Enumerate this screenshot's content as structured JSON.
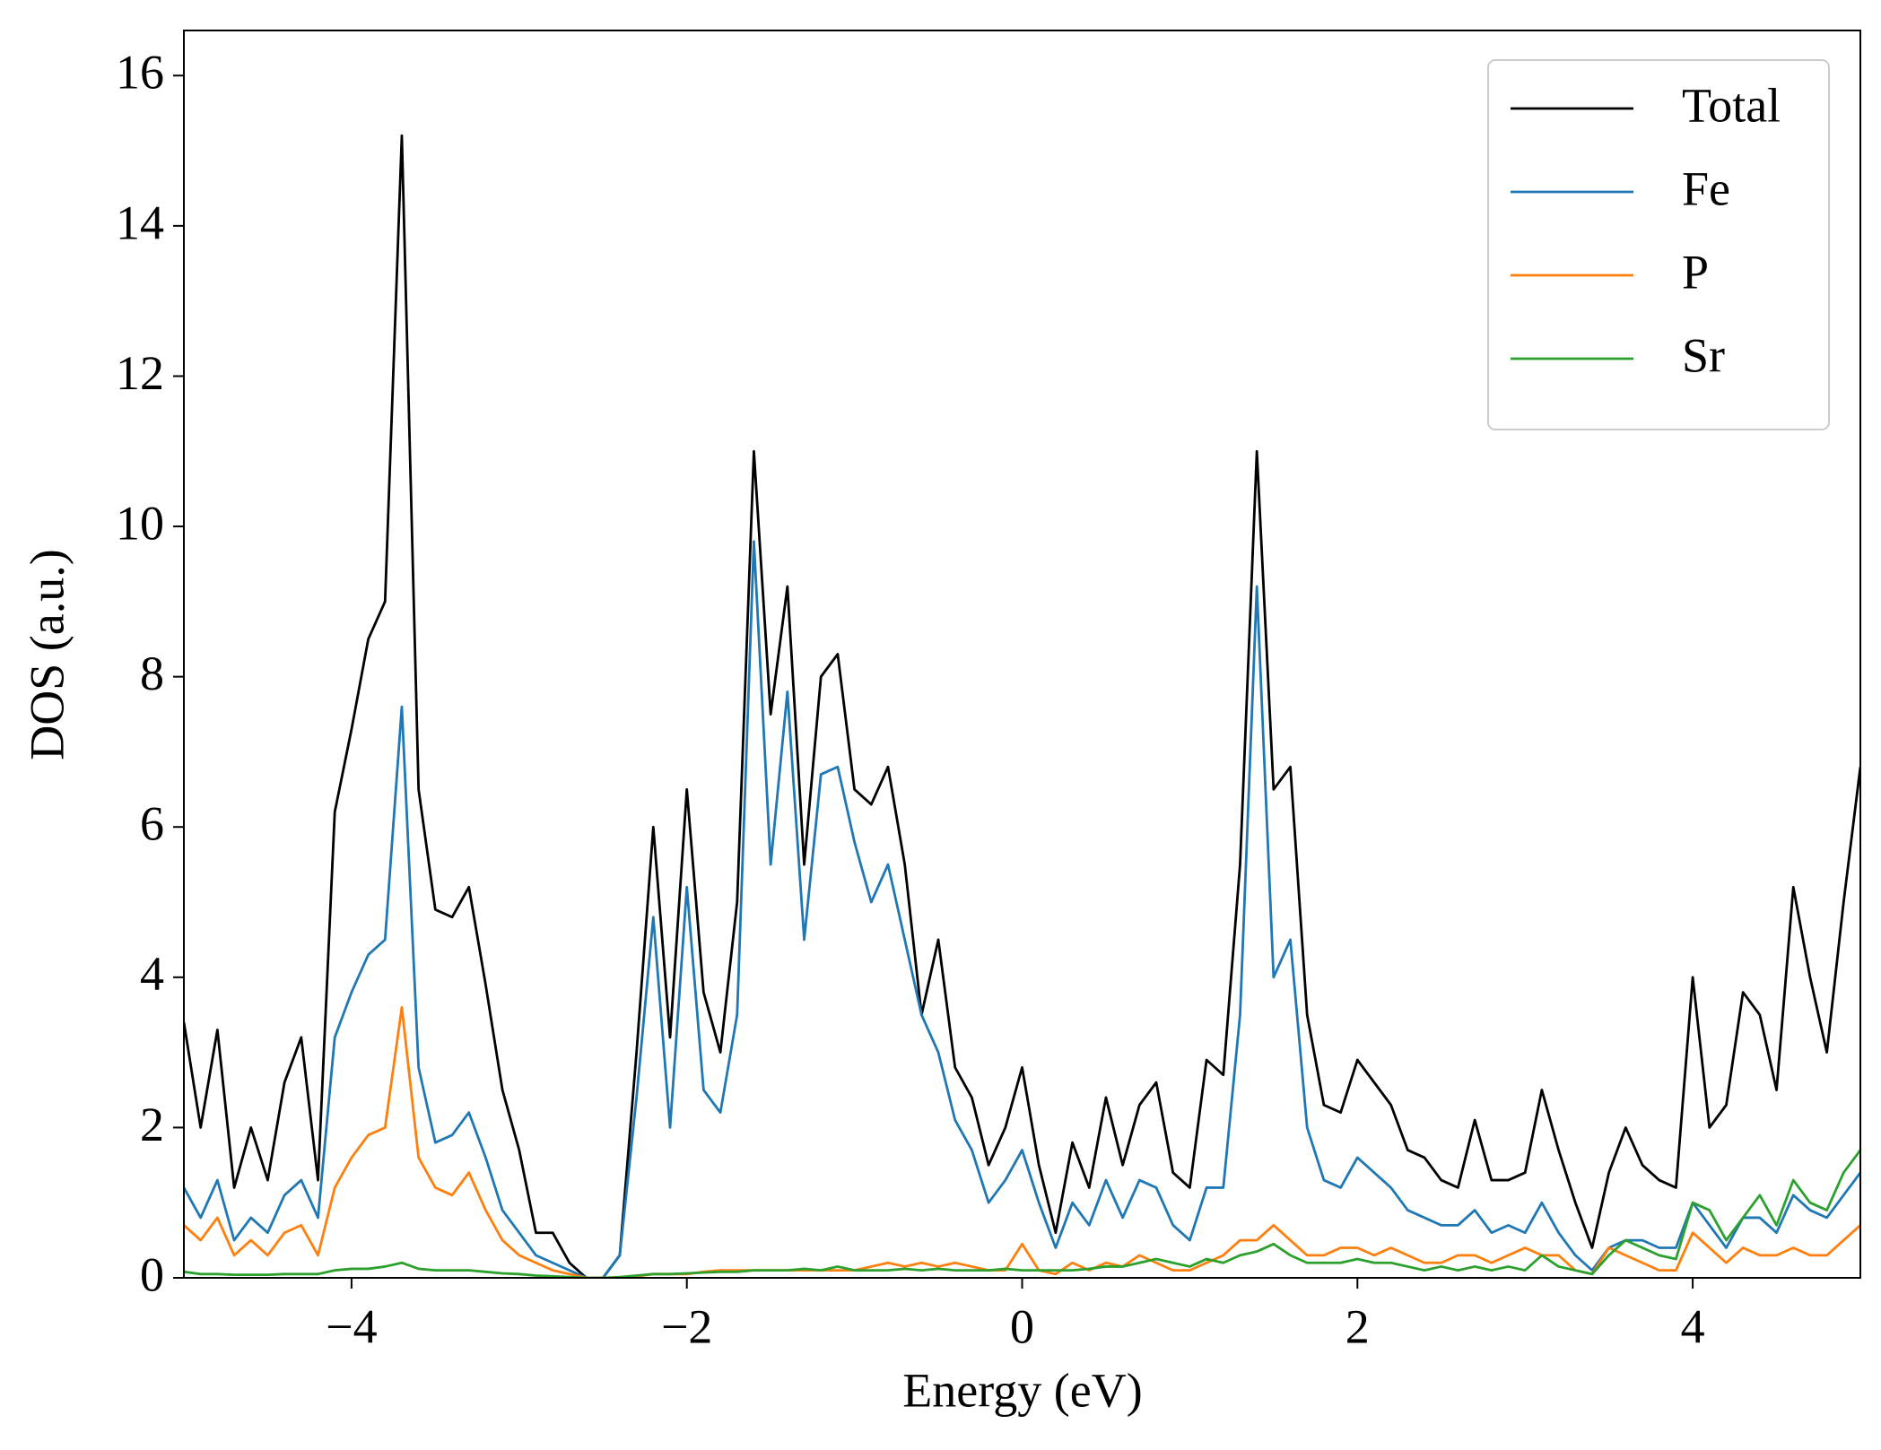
{
  "chart_data": {
    "type": "line",
    "xlabel": "Energy (eV)",
    "ylabel": "DOS (a.u.)",
    "x": [
      -5,
      -4.9,
      -4.8,
      -4.7,
      -4.6,
      -4.5,
      -4.4,
      -4.3,
      -4.2,
      -4.1,
      -4,
      -3.9,
      -3.8,
      -3.7,
      -3.6,
      -3.5,
      -3.4,
      -3.3,
      -3.2,
      -3.1,
      -3,
      -2.9,
      -2.8,
      -2.7,
      -2.6,
      -2.5,
      -2.4,
      -2.3,
      -2.2,
      -2.1,
      -2,
      -1.9,
      -1.8,
      -1.7,
      -1.6,
      -1.5,
      -1.4,
      -1.3,
      -1.2,
      -1.1,
      -1,
      -0.9,
      -0.8,
      -0.7,
      -0.6,
      -0.5,
      -0.4,
      -0.3,
      -0.2,
      -0.1,
      0,
      0.1,
      0.2,
      0.3,
      0.4,
      0.5,
      0.6,
      0.7,
      0.8,
      0.9,
      1,
      1.1,
      1.2,
      1.3,
      1.4,
      1.5,
      1.6,
      1.7,
      1.8,
      1.9,
      2,
      2.1,
      2.2,
      2.3,
      2.4,
      2.5,
      2.6,
      2.7,
      2.8,
      2.9,
      3,
      3.1,
      3.2,
      3.3,
      3.4,
      3.5,
      3.6,
      3.7,
      3.8,
      3.9,
      4,
      4.1,
      4.2,
      4.3,
      4.4,
      4.5,
      4.6,
      4.7,
      4.8,
      4.9,
      5
    ],
    "series": [
      {
        "name": "Total",
        "color": "#000000",
        "values": [
          3.4,
          2.0,
          3.3,
          1.2,
          2.0,
          1.3,
          2.6,
          3.2,
          1.3,
          6.2,
          7.3,
          8.5,
          9.0,
          15.2,
          6.5,
          4.9,
          4.8,
          5.2,
          3.9,
          2.5,
          1.7,
          0.6,
          0.6,
          0.2,
          0.0,
          0.0,
          0.3,
          3.0,
          6.0,
          3.2,
          6.5,
          3.8,
          3.0,
          5.0,
          11.0,
          7.5,
          9.2,
          5.5,
          8.0,
          8.3,
          6.5,
          6.3,
          6.8,
          5.5,
          3.5,
          4.5,
          2.8,
          2.4,
          1.5,
          2.0,
          2.8,
          1.5,
          0.6,
          1.8,
          1.2,
          2.4,
          1.5,
          2.3,
          2.6,
          1.4,
          1.2,
          2.9,
          2.7,
          5.5,
          11.0,
          6.5,
          6.8,
          3.5,
          2.3,
          2.2,
          2.9,
          2.6,
          2.3,
          1.7,
          1.6,
          1.3,
          1.2,
          2.1,
          1.3,
          1.3,
          1.4,
          2.5,
          1.7,
          1.0,
          0.4,
          1.4,
          2.0,
          1.5,
          1.3,
          1.2,
          4.0,
          2.0,
          2.3,
          3.8,
          3.5,
          2.5,
          5.2,
          4.0,
          3.0,
          5.0,
          6.8
        ]
      },
      {
        "name": "Fe",
        "color": "#1f77b4",
        "values": [
          1.2,
          0.8,
          1.3,
          0.5,
          0.8,
          0.6,
          1.1,
          1.3,
          0.8,
          3.2,
          3.8,
          4.3,
          4.5,
          7.6,
          2.8,
          1.8,
          1.9,
          2.2,
          1.6,
          0.9,
          0.6,
          0.3,
          0.2,
          0.1,
          0,
          0,
          0.3,
          2.4,
          4.8,
          2.0,
          5.2,
          2.5,
          2.2,
          3.5,
          9.8,
          5.5,
          7.8,
          4.5,
          6.7,
          6.8,
          5.8,
          5.0,
          5.5,
          4.5,
          3.5,
          3.0,
          2.1,
          1.7,
          1.0,
          1.3,
          1.7,
          1.0,
          0.4,
          1.0,
          0.7,
          1.3,
          0.8,
          1.3,
          1.2,
          0.7,
          0.5,
          1.2,
          1.2,
          3.5,
          9.2,
          4.0,
          4.5,
          2.0,
          1.3,
          1.2,
          1.6,
          1.4,
          1.2,
          0.9,
          0.8,
          0.7,
          0.7,
          0.9,
          0.6,
          0.7,
          0.6,
          1.0,
          0.6,
          0.3,
          0.1,
          0.4,
          0.5,
          0.5,
          0.4,
          0.4,
          1.0,
          0.7,
          0.4,
          0.8,
          0.8,
          0.6,
          1.1,
          0.9,
          0.8,
          1.1,
          1.4
        ]
      },
      {
        "name": "P",
        "color": "#ff7f0e",
        "values": [
          0.7,
          0.5,
          0.8,
          0.3,
          0.5,
          0.3,
          0.6,
          0.7,
          0.3,
          1.2,
          1.6,
          1.9,
          2.0,
          3.6,
          1.6,
          1.2,
          1.1,
          1.4,
          0.9,
          0.5,
          0.3,
          0.2,
          0.1,
          0.05,
          0,
          0,
          0,
          0.02,
          0.05,
          0.05,
          0.05,
          0.08,
          0.1,
          0.1,
          0.1,
          0.1,
          0.1,
          0.1,
          0.1,
          0.1,
          0.1,
          0.15,
          0.2,
          0.15,
          0.2,
          0.15,
          0.2,
          0.15,
          0.1,
          0.1,
          0.45,
          0.1,
          0.05,
          0.2,
          0.1,
          0.2,
          0.15,
          0.3,
          0.2,
          0.1,
          0.1,
          0.2,
          0.3,
          0.5,
          0.5,
          0.7,
          0.5,
          0.3,
          0.3,
          0.4,
          0.4,
          0.3,
          0.4,
          0.3,
          0.2,
          0.2,
          0.3,
          0.3,
          0.2,
          0.3,
          0.4,
          0.3,
          0.3,
          0.1,
          0.05,
          0.4,
          0.3,
          0.2,
          0.1,
          0.1,
          0.6,
          0.4,
          0.2,
          0.4,
          0.3,
          0.3,
          0.4,
          0.3,
          0.3,
          0.5,
          0.7
        ]
      },
      {
        "name": "Sr",
        "color": "#2ca02c",
        "values": [
          0.08,
          0.05,
          0.05,
          0.04,
          0.04,
          0.04,
          0.05,
          0.05,
          0.05,
          0.1,
          0.12,
          0.12,
          0.15,
          0.2,
          0.12,
          0.1,
          0.1,
          0.1,
          0.08,
          0.06,
          0.05,
          0.03,
          0.02,
          0.01,
          0,
          0,
          0.01,
          0.03,
          0.05,
          0.05,
          0.06,
          0.07,
          0.08,
          0.08,
          0.1,
          0.1,
          0.1,
          0.12,
          0.1,
          0.15,
          0.1,
          0.1,
          0.1,
          0.12,
          0.1,
          0.12,
          0.1,
          0.1,
          0.1,
          0.12,
          0.1,
          0.1,
          0.1,
          0.1,
          0.12,
          0.15,
          0.15,
          0.2,
          0.25,
          0.2,
          0.15,
          0.25,
          0.2,
          0.3,
          0.35,
          0.45,
          0.3,
          0.2,
          0.2,
          0.2,
          0.25,
          0.2,
          0.2,
          0.15,
          0.1,
          0.15,
          0.1,
          0.15,
          0.1,
          0.15,
          0.1,
          0.3,
          0.15,
          0.1,
          0.05,
          0.3,
          0.5,
          0.4,
          0.3,
          0.25,
          1.0,
          0.9,
          0.5,
          0.8,
          1.1,
          0.7,
          1.3,
          1.0,
          0.9,
          1.4,
          1.7
        ]
      }
    ],
    "xlim": [
      -5,
      5
    ],
    "xticks": [
      {
        "value": -4,
        "label": "−4"
      },
      {
        "value": -2,
        "label": "−2"
      },
      0,
      2,
      4
    ],
    "ylim": [
      0,
      16.6
    ],
    "yticks": [
      0,
      2,
      4,
      6,
      8,
      10,
      12,
      14,
      16
    ],
    "grid": false,
    "legend": "upper right"
  }
}
